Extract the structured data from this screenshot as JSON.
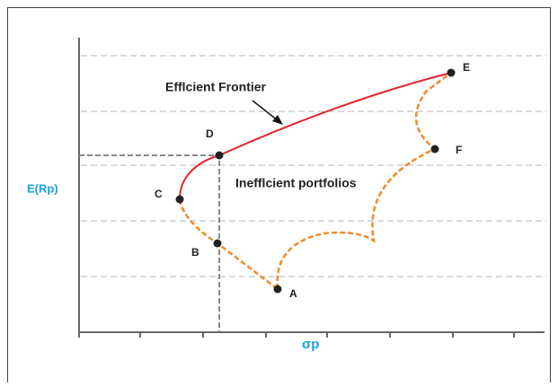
{
  "labels": {
    "frontier": "Efflcient Frontier",
    "inefficient": "Inefflcient portfolios",
    "y_axis": "E(Rp)",
    "x_axis": "σp"
  },
  "points": [
    {
      "label": "A"
    },
    {
      "label": "B"
    },
    {
      "label": "C"
    },
    {
      "label": "D"
    },
    {
      "label": "E"
    },
    {
      "label": "F"
    }
  ]
}
